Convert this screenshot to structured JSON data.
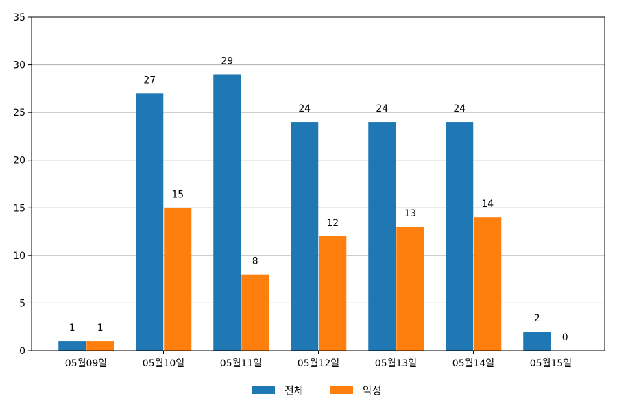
{
  "chart_data": {
    "type": "bar",
    "categories": [
      "05월09일",
      "05월10일",
      "05월11일",
      "05월12일",
      "05월13일",
      "05월14일",
      "05월15일"
    ],
    "series": [
      {
        "name": "전체",
        "values": [
          1,
          27,
          29,
          24,
          24,
          24,
          2
        ],
        "color": "#1f77b4"
      },
      {
        "name": "악성",
        "values": [
          1,
          15,
          8,
          12,
          13,
          14,
          0
        ],
        "color": "#ff7f0e"
      }
    ],
    "ylim": [
      0,
      35
    ],
    "yticks": [
      0,
      5,
      10,
      15,
      20,
      25,
      30,
      35
    ],
    "grid": "horizontal",
    "legend": "bottom-center",
    "data_labels": true
  }
}
